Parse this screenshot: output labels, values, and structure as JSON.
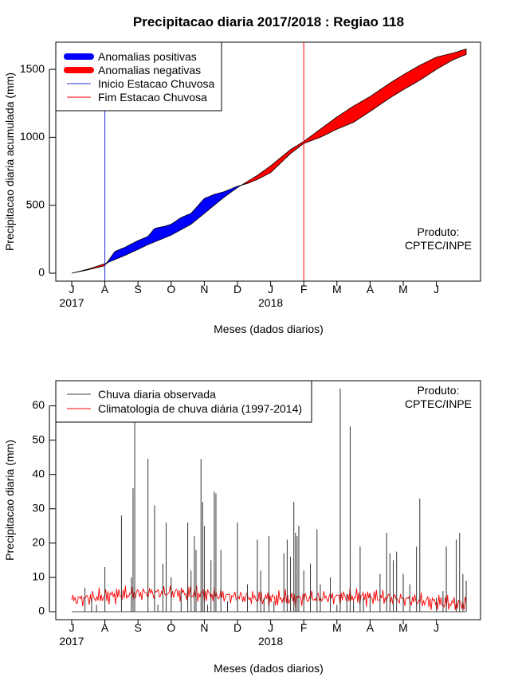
{
  "title": "Precipitacao diaria 2017/2018 : Regiao 118",
  "chart_data": [
    {
      "type": "area",
      "xlabel": "Meses (dados diarios)",
      "ylabel": "Precipitacao diaria acumulada (mm)",
      "ylim": [
        0,
        1700
      ],
      "yticks": [
        0,
        500,
        1000,
        1500
      ],
      "month_ticks": [
        "J",
        "A",
        "S",
        "O",
        "N",
        "D",
        "J",
        "F",
        "M",
        "A",
        "M",
        "J"
      ],
      "year_labels": [
        {
          "label": "2017",
          "month_index": 0
        },
        {
          "label": "2018",
          "month_index": 6
        }
      ],
      "credit": [
        "Produto:",
        "CPTEC/INPE"
      ],
      "legend": [
        {
          "label": "Anomalias positivas",
          "color": "#0000ff",
          "kind": "thick"
        },
        {
          "label": "Anomalias negativas",
          "color": "#ff0000",
          "kind": "thick"
        },
        {
          "label": "Inicio Estacao Chuvosa",
          "color": "#2b2bd9",
          "kind": "line"
        },
        {
          "label": "Fim Estacao Chuvosa",
          "color": "#ff0000",
          "kind": "line"
        }
      ],
      "rainy_season_start_month": 1.0,
      "rainy_season_end_month": 7.0,
      "observed_cumulative": [
        [
          0,
          0
        ],
        [
          0.5,
          25
        ],
        [
          1,
          55
        ],
        [
          1.3,
          160
        ],
        [
          1.6,
          190
        ],
        [
          2,
          240
        ],
        [
          2.3,
          270
        ],
        [
          2.5,
          330
        ],
        [
          2.8,
          345
        ],
        [
          3,
          360
        ],
        [
          3.3,
          410
        ],
        [
          3.6,
          440
        ],
        [
          4,
          550
        ],
        [
          4.3,
          580
        ],
        [
          4.6,
          600
        ],
        [
          5,
          640
        ],
        [
          5.3,
          660
        ],
        [
          5.6,
          690
        ],
        [
          6,
          740
        ],
        [
          6.3,
          810
        ],
        [
          6.6,
          880
        ],
        [
          7,
          955
        ],
        [
          7.5,
          1000
        ],
        [
          8,
          1060
        ],
        [
          8.5,
          1110
        ],
        [
          9,
          1190
        ],
        [
          9.3,
          1240
        ],
        [
          9.6,
          1290
        ],
        [
          10,
          1350
        ],
        [
          10.5,
          1420
        ],
        [
          11,
          1500
        ],
        [
          11.5,
          1570
        ],
        [
          11.9,
          1610
        ]
      ],
      "climatology_cumulative": [
        [
          0,
          0
        ],
        [
          0.5,
          30
        ],
        [
          1,
          70
        ],
        [
          1.3,
          100
        ],
        [
          1.6,
          130
        ],
        [
          2,
          175
        ],
        [
          2.3,
          210
        ],
        [
          2.5,
          230
        ],
        [
          2.8,
          260
        ],
        [
          3,
          280
        ],
        [
          3.3,
          320
        ],
        [
          3.6,
          360
        ],
        [
          4,
          440
        ],
        [
          4.3,
          500
        ],
        [
          4.6,
          560
        ],
        [
          5,
          630
        ],
        [
          5.3,
          675
        ],
        [
          5.6,
          720
        ],
        [
          6,
          790
        ],
        [
          6.3,
          850
        ],
        [
          6.6,
          910
        ],
        [
          7,
          970
        ],
        [
          7.5,
          1060
        ],
        [
          8,
          1150
        ],
        [
          8.5,
          1230
        ],
        [
          9,
          1300
        ],
        [
          9.3,
          1350
        ],
        [
          9.6,
          1400
        ],
        [
          10,
          1460
        ],
        [
          10.5,
          1530
        ],
        [
          11,
          1590
        ],
        [
          11.5,
          1620
        ],
        [
          11.9,
          1650
        ]
      ]
    },
    {
      "type": "line",
      "xlabel": "Meses (dados diarios)",
      "ylabel": "Precipitacao diaria (mm)",
      "ylim": [
        0,
        65
      ],
      "yticks": [
        0,
        10,
        20,
        30,
        40,
        50,
        60
      ],
      "month_ticks": [
        "J",
        "A",
        "S",
        "O",
        "N",
        "D",
        "J",
        "F",
        "M",
        "A",
        "M",
        "J"
      ],
      "year_labels": [
        {
          "label": "2017",
          "month_index": 0
        },
        {
          "label": "2018",
          "month_index": 6
        }
      ],
      "credit": [
        "Produto:",
        "CPTEC/INPE"
      ],
      "legend": [
        {
          "label": "Chuva diaria observada",
          "color": "#444444",
          "kind": "line"
        },
        {
          "label": "Climatologia de chuva diária (1997-2014)",
          "color": "#ff0000",
          "kind": "line"
        }
      ],
      "observed_daily": [
        [
          0.4,
          7
        ],
        [
          0.6,
          4
        ],
        [
          0.75,
          2
        ],
        [
          1.0,
          13
        ],
        [
          1.5,
          28
        ],
        [
          1.8,
          10
        ],
        [
          1.85,
          36
        ],
        [
          1.9,
          58
        ],
        [
          2.3,
          44.5
        ],
        [
          2.5,
          31
        ],
        [
          2.6,
          2
        ],
        [
          2.75,
          14
        ],
        [
          2.85,
          26
        ],
        [
          3.0,
          10
        ],
        [
          3.3,
          6
        ],
        [
          3.5,
          26
        ],
        [
          3.6,
          12
        ],
        [
          3.7,
          22
        ],
        [
          3.75,
          18
        ],
        [
          3.9,
          44.5
        ],
        [
          3.95,
          32
        ],
        [
          4.0,
          25
        ],
        [
          4.1,
          2
        ],
        [
          4.2,
          15
        ],
        [
          4.3,
          35
        ],
        [
          4.35,
          34.5
        ],
        [
          4.5,
          18
        ],
        [
          4.7,
          3
        ],
        [
          5.0,
          26
        ],
        [
          5.3,
          8
        ],
        [
          5.6,
          21
        ],
        [
          5.7,
          12
        ],
        [
          5.8,
          4
        ],
        [
          5.95,
          22
        ],
        [
          6.1,
          3
        ],
        [
          6.4,
          17
        ],
        [
          6.5,
          21
        ],
        [
          6.6,
          16
        ],
        [
          6.7,
          32
        ],
        [
          6.75,
          23
        ],
        [
          6.8,
          22
        ],
        [
          6.85,
          25
        ],
        [
          7.0,
          12
        ],
        [
          7.2,
          14
        ],
        [
          7.4,
          24
        ],
        [
          7.5,
          8
        ],
        [
          7.8,
          10
        ],
        [
          8.0,
          2
        ],
        [
          8.1,
          65
        ],
        [
          8.3,
          5
        ],
        [
          8.4,
          54
        ],
        [
          8.5,
          3
        ],
        [
          8.7,
          19
        ],
        [
          8.8,
          4
        ],
        [
          9.0,
          5
        ],
        [
          9.3,
          11
        ],
        [
          9.5,
          23
        ],
        [
          9.6,
          17
        ],
        [
          9.7,
          15
        ],
        [
          9.8,
          17.5
        ],
        [
          10.0,
          11
        ],
        [
          10.2,
          8
        ],
        [
          10.4,
          19
        ],
        [
          10.5,
          33
        ],
        [
          11.0,
          4
        ],
        [
          11.2,
          6
        ],
        [
          11.3,
          19
        ],
        [
          11.6,
          21
        ],
        [
          11.7,
          23
        ],
        [
          11.8,
          11
        ],
        [
          11.9,
          9
        ]
      ]
    }
  ]
}
